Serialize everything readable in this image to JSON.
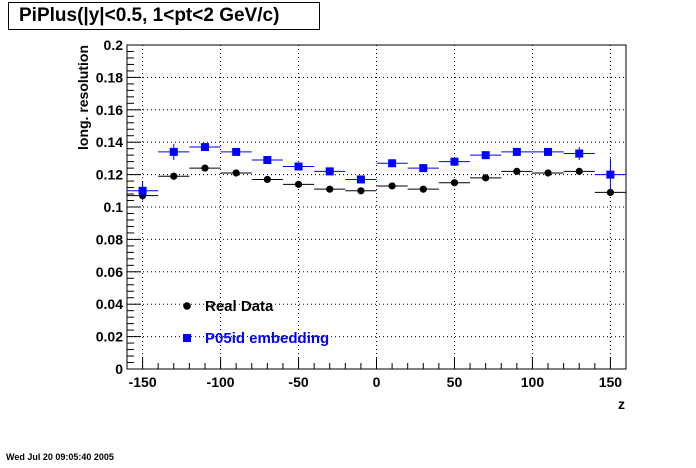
{
  "title": "PiPlus(|y|<0.5, 1<pt<2 GeV/c)",
  "timestamp": "Wed Jul 20 09:05:40 2005",
  "chart_data": {
    "type": "scatter",
    "xlabel": "z",
    "ylabel": "long. resolution",
    "xlim": [
      -160,
      160
    ],
    "ylim": [
      0,
      0.2
    ],
    "grid": true,
    "legend_placement": "bottom-left",
    "x_tick_labels": [
      "-150",
      "-100",
      "-50",
      "0",
      "50",
      "100",
      "150"
    ],
    "y_tick_labels": [
      "0",
      "0.02",
      "0.04",
      "0.06",
      "0.08",
      "0.1",
      "0.12",
      "0.14",
      "0.16",
      "0.18",
      "0.2"
    ],
    "x": [
      -150,
      -130,
      -110,
      -90,
      -70,
      -50,
      -30,
      -10,
      10,
      30,
      50,
      70,
      90,
      110,
      130,
      150
    ],
    "x_half_width": 10,
    "series": [
      {
        "name": "Real Data",
        "color": "#000000",
        "marker": "circle",
        "values": [
          0.107,
          0.119,
          0.124,
          0.121,
          0.117,
          0.114,
          0.111,
          0.11,
          0.113,
          0.111,
          0.115,
          0.118,
          0.122,
          0.121,
          0.122,
          0.109
        ],
        "errors": [
          0.002,
          0.001,
          0.001,
          0.001,
          0.001,
          0.001,
          0.001,
          0.001,
          0.001,
          0.001,
          0.001,
          0.001,
          0.001,
          0.001,
          0.001,
          0.002
        ]
      },
      {
        "name": "P05id embedding",
        "color": "#0000ff",
        "marker": "square",
        "values": [
          0.11,
          0.134,
          0.137,
          0.134,
          0.129,
          0.125,
          0.122,
          0.117,
          0.127,
          0.124,
          0.128,
          0.132,
          0.134,
          0.134,
          0.133,
          0.12
        ],
        "errors": [
          0.006,
          0.005,
          0.002,
          0.002,
          0.002,
          0.002,
          0.002,
          0.002,
          0.002,
          0.002,
          0.002,
          0.002,
          0.002,
          0.002,
          0.004,
          0.01
        ]
      }
    ]
  }
}
